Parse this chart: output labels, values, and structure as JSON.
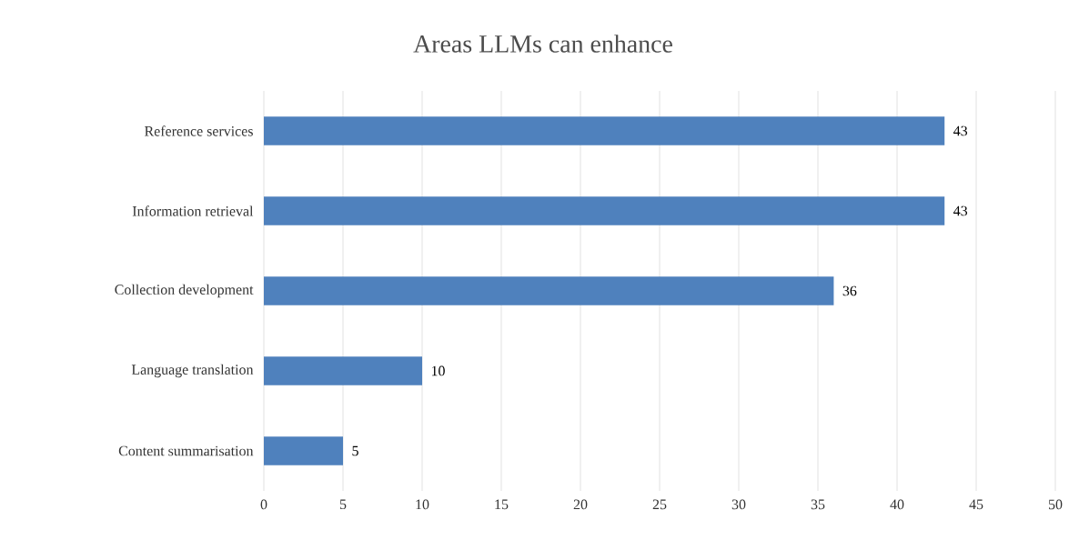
{
  "chart_data": {
    "type": "bar",
    "orientation": "horizontal",
    "title": "Areas LLMs can enhance",
    "categories": [
      "Reference services",
      "Information retrieval",
      "Collection development",
      "Language translation",
      "Content summarisation"
    ],
    "values": [
      43,
      43,
      36,
      10,
      5
    ],
    "color": "#4f81bd",
    "xlim": [
      0,
      50
    ],
    "xticks": [
      0,
      5,
      10,
      15,
      20,
      25,
      30,
      35,
      40,
      45,
      50
    ],
    "grid": "x",
    "data_labels": true
  }
}
